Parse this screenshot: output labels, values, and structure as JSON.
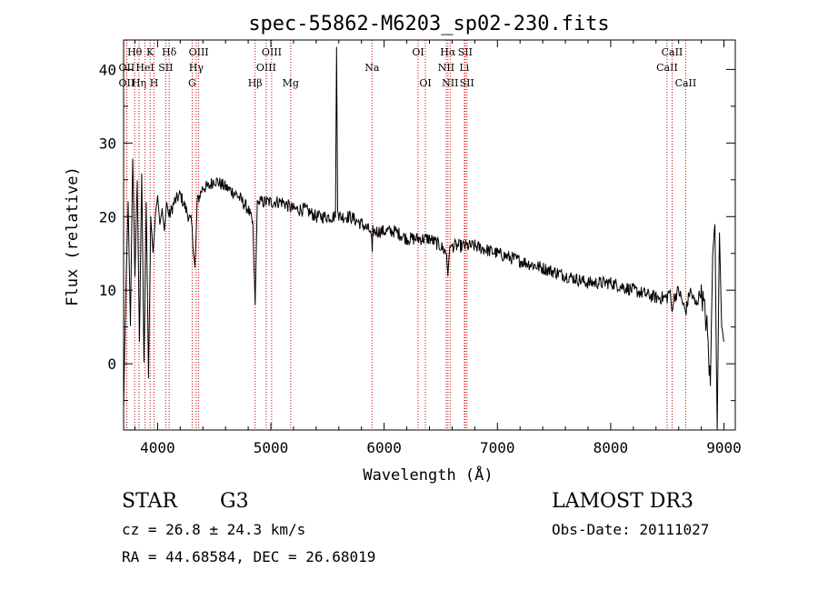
{
  "chart_data": {
    "type": "line",
    "title": "spec-55862-M6203_sp02-230.fits",
    "xlabel": "Wavelength (Å)",
    "ylabel": "Flux (relative)",
    "xlim": [
      3700,
      9100
    ],
    "ylim": [
      -9,
      44
    ],
    "xticks": [
      4000,
      5000,
      6000,
      7000,
      8000,
      9000
    ],
    "yticks": [
      0,
      10,
      20,
      30,
      40
    ],
    "series": [
      {
        "name": "flux",
        "x": [
          3700,
          3720,
          3740,
          3760,
          3780,
          3800,
          3820,
          3840,
          3860,
          3880,
          3900,
          3920,
          3940,
          3960,
          3980,
          4000,
          4020,
          4040,
          4060,
          4080,
          4100,
          4150,
          4200,
          4250,
          4300,
          4330,
          4350,
          4400,
          4450,
          4500,
          4600,
          4700,
          4800,
          4840,
          4861,
          4880,
          4900,
          5000,
          5100,
          5200,
          5300,
          5400,
          5500,
          5570,
          5580,
          5590,
          5600,
          5700,
          5800,
          5880,
          5890,
          5895,
          5900,
          6000,
          6100,
          6200,
          6300,
          6400,
          6500,
          6550,
          6563,
          6580,
          6600,
          6700,
          6800,
          7000,
          7200,
          7400,
          7600,
          7800,
          8000,
          8200,
          8400,
          8498,
          8520,
          8542,
          8560,
          8600,
          8662,
          8700,
          8750,
          8800,
          8850,
          8880,
          8900,
          8920,
          8940,
          8960,
          8980,
          9000
        ],
        "values": [
          -6,
          10,
          22,
          5,
          28,
          12,
          25,
          3,
          26,
          0,
          22,
          -2,
          20,
          15,
          20,
          23,
          19,
          21,
          18,
          22,
          20,
          22,
          23,
          21,
          19,
          13,
          22,
          24,
          24,
          25,
          24,
          23,
          21,
          19,
          8,
          22,
          22,
          22,
          22,
          21,
          21,
          20,
          20,
          20,
          43,
          21,
          20,
          20,
          19,
          18,
          17,
          15,
          18,
          18,
          18,
          17,
          17,
          17,
          16,
          15,
          12,
          16,
          16,
          16,
          16,
          15,
          14,
          13,
          12,
          11,
          11,
          10,
          9,
          9,
          10,
          7,
          9,
          10,
          7,
          10,
          8,
          10,
          5,
          -3,
          15,
          19,
          -9,
          18,
          5,
          3
        ]
      }
    ],
    "lines": [
      {
        "name": "Hθ",
        "x": 3798,
        "row": 1
      },
      {
        "name": "OII",
        "x": 3727,
        "row": 2
      },
      {
        "name": "OII",
        "x": 3727,
        "row": 3
      },
      {
        "name": "Hη",
        "x": 3836,
        "row": 3
      },
      {
        "name": "HeI",
        "x": 3889,
        "row": 2
      },
      {
        "name": "K",
        "x": 3934,
        "row": 1
      },
      {
        "name": "H",
        "x": 3969,
        "row": 3
      },
      {
        "name": "SII",
        "x": 4072,
        "row": 2
      },
      {
        "name": "Hδ",
        "x": 4102,
        "row": 1
      },
      {
        "name": "G",
        "x": 4305,
        "row": 3
      },
      {
        "name": "Hγ",
        "x": 4341,
        "row": 2
      },
      {
        "name": "OIII",
        "x": 4363,
        "row": 1
      },
      {
        "name": "Hβ",
        "x": 4861,
        "row": 3
      },
      {
        "name": "OIII",
        "x": 4959,
        "row": 2
      },
      {
        "name": "OIII",
        "x": 5007,
        "row": 1
      },
      {
        "name": "Mg",
        "x": 5175,
        "row": 3
      },
      {
        "name": "Na",
        "x": 5893,
        "row": 2
      },
      {
        "name": "OI",
        "x": 6300,
        "row": 1
      },
      {
        "name": "OI",
        "x": 6364,
        "row": 3
      },
      {
        "name": "NII",
        "x": 6548,
        "row": 2
      },
      {
        "name": "Hα",
        "x": 6563,
        "row": 1
      },
      {
        "name": "NII",
        "x": 6583,
        "row": 3
      },
      {
        "name": "Li",
        "x": 6708,
        "row": 2
      },
      {
        "name": "SII",
        "x": 6716,
        "row": 1
      },
      {
        "name": "SII",
        "x": 6731,
        "row": 3
      },
      {
        "name": "CaII",
        "x": 8498,
        "row": 2
      },
      {
        "name": "CaII",
        "x": 8542,
        "row": 1
      },
      {
        "name": "CaII",
        "x": 8662,
        "row": 3
      }
    ]
  },
  "info": {
    "object_class": "STAR",
    "subclass": "G3",
    "survey": "LAMOST DR3",
    "redshift": "cz = 26.8 ± 24.3 km/s",
    "obs_date": "Obs-Date: 20111027",
    "coords": "RA =  44.68584, DEC =  26.68019"
  },
  "colors": {
    "spectrum": "#000000",
    "lines": "#cc0000",
    "axes": "#000000"
  }
}
